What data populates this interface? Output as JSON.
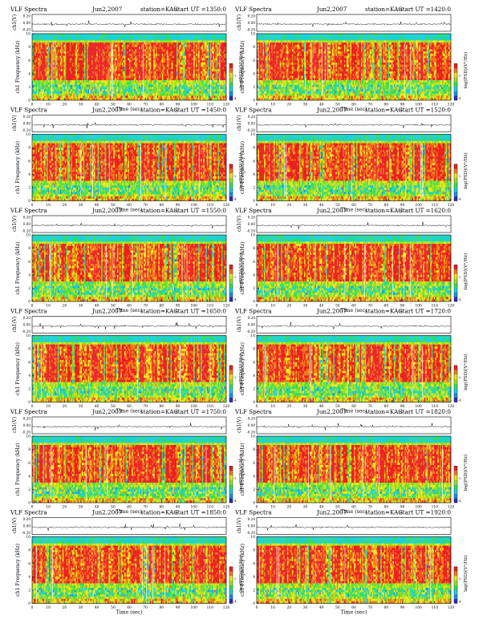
{
  "palette": [
    "#2a2fb8",
    "#1a90e8",
    "#1ad0d8",
    "#33dd55",
    "#9be01c",
    "#ece81a",
    "#f07a18",
    "#ea2020"
  ],
  "chart_data": [
    {
      "type": "heatmap",
      "title": "VLF Spectra",
      "date": "Jun2,2007",
      "station": "station=KAG",
      "start": "start  UT  =1350:0",
      "ylabel_top": "ch1(V)",
      "ylabel_spec": "ch1\nFrequency  (kHz)",
      "xlabel": "Time  (sec)",
      "colorbar_label": "log(PSD)(V²/Hz)",
      "xlim": [
        0,
        120
      ],
      "ylim": [
        0,
        10
      ],
      "top_ylim": [
        -0.2,
        0.2
      ],
      "xticks": [
        0,
        10,
        20,
        30,
        40,
        50,
        60,
        70,
        80,
        90,
        100,
        110,
        120
      ],
      "yticks": [
        0,
        2,
        4,
        6,
        8,
        10
      ],
      "top_yticks": [
        "0.20",
        "0.00",
        "-0.20"
      ],
      "cbar_ticks": [
        "-4",
        "-2"
      ],
      "grid": false
    },
    {
      "type": "heatmap",
      "title": "VLF Spectra",
      "date": "Jun2,2007",
      "station": "station=KAG",
      "start": "start  UT  =1420:0",
      "ylabel_top": "ch1(V)",
      "ylabel_spec": "ch1\nFrequency  (kHz)",
      "xlabel": "Time  (sec)",
      "colorbar_label": "log(PSD)(V²/Hz)",
      "xlim": [
        0,
        120
      ],
      "ylim": [
        0,
        10
      ],
      "top_ylim": [
        -0.2,
        0.2
      ],
      "xticks": [
        0,
        10,
        20,
        30,
        40,
        50,
        60,
        70,
        80,
        90,
        100,
        110,
        120
      ],
      "yticks": [
        0,
        2,
        4,
        6,
        8,
        10
      ],
      "top_yticks": [
        "0.20",
        "0.00",
        "-0.20"
      ],
      "cbar_ticks": [
        "-4",
        "-2"
      ],
      "grid": false
    },
    {
      "type": "heatmap",
      "title": "VLF Spectra",
      "date": "Jun2,2007",
      "station": "station=KAG",
      "start": "start  UT  =1450:0",
      "ylabel_top": "ch1(V)",
      "ylabel_spec": "ch1\nFrequency  (kHz)",
      "xlabel": "Time  (sec)",
      "colorbar_label": "log(PSD)(V²/Hz)",
      "xlim": [
        0,
        120
      ],
      "ylim": [
        0,
        10
      ],
      "top_ylim": [
        -0.2,
        0.2
      ],
      "xticks": [
        0,
        10,
        20,
        30,
        40,
        50,
        60,
        70,
        80,
        90,
        100,
        110,
        120
      ],
      "yticks": [
        0,
        2,
        4,
        6,
        8,
        10
      ],
      "top_yticks": [
        "0.20",
        "0.00",
        "-0.20"
      ],
      "cbar_ticks": [
        "-4",
        "-2"
      ],
      "grid": false
    },
    {
      "type": "heatmap",
      "title": "VLF Spectra",
      "date": "Jun2,2007",
      "station": "station=KAG",
      "start": "start  UT  =1520:0",
      "ylabel_top": "ch1(V)",
      "ylabel_spec": "ch1\nFrequency  (kHz)",
      "xlabel": "Time  (sec)",
      "colorbar_label": "log(PSD)(V²/Hz)",
      "xlim": [
        0,
        120
      ],
      "ylim": [
        0,
        10
      ],
      "top_ylim": [
        -0.2,
        0.2
      ],
      "xticks": [
        0,
        10,
        20,
        30,
        40,
        50,
        60,
        70,
        80,
        90,
        100,
        110,
        120
      ],
      "yticks": [
        0,
        2,
        4,
        6,
        8,
        10
      ],
      "top_yticks": [
        "0.20",
        "0.00",
        "-0.20"
      ],
      "cbar_ticks": [
        "-4",
        "-2"
      ],
      "grid": false
    },
    {
      "type": "heatmap",
      "title": "VLF Spectra",
      "date": "Jun2,2007",
      "station": "station=KAG",
      "start": "start  UT  =1550:0",
      "ylabel_top": "ch1(V)",
      "ylabel_spec": "ch1\nFrequency  (kHz)",
      "xlabel": "Time  (sec)",
      "colorbar_label": "log(PSD)(V²/Hz)",
      "xlim": [
        0,
        120
      ],
      "ylim": [
        0,
        10
      ],
      "top_ylim": [
        -0.2,
        0.2
      ],
      "xticks": [
        0,
        10,
        20,
        30,
        40,
        50,
        60,
        70,
        80,
        90,
        100,
        110,
        120
      ],
      "yticks": [
        0,
        2,
        4,
        6,
        8,
        10
      ],
      "top_yticks": [
        "0.20",
        "0.00",
        "-0.20"
      ],
      "cbar_ticks": [
        "-4",
        "-2"
      ],
      "grid": false
    },
    {
      "type": "heatmap",
      "title": "VLF Spectra",
      "date": "Jun2,2007",
      "station": "station=KAG",
      "start": "start  UT  =1620:0",
      "ylabel_top": "ch1(V)",
      "ylabel_spec": "ch1\nFrequency  (kHz)",
      "xlabel": "Time  (sec)",
      "colorbar_label": "log(PSD)(V²/Hz)",
      "xlim": [
        0,
        120
      ],
      "ylim": [
        0,
        10
      ],
      "top_ylim": [
        -0.2,
        0.2
      ],
      "xticks": [
        0,
        10,
        20,
        30,
        40,
        50,
        60,
        70,
        80,
        90,
        100,
        110,
        120
      ],
      "yticks": [
        0,
        2,
        4,
        6,
        8,
        10
      ],
      "top_yticks": [
        "0.20",
        "0.00",
        "-0.20"
      ],
      "cbar_ticks": [
        "-4",
        "-2"
      ],
      "grid": false
    },
    {
      "type": "heatmap",
      "title": "VLF Spectra",
      "date": "Jun2,2007",
      "station": "station=KAG",
      "start": "start  UT  =1650:0",
      "ylabel_top": "ch1(V)",
      "ylabel_spec": "ch1\nFrequency  (kHz)",
      "xlabel": "Time  (sec)",
      "colorbar_label": "log(PSD)(V²/Hz)",
      "xlim": [
        0,
        120
      ],
      "ylim": [
        0,
        10
      ],
      "top_ylim": [
        -0.2,
        0.2
      ],
      "xticks": [
        0,
        10,
        20,
        30,
        40,
        50,
        60,
        70,
        80,
        90,
        100,
        110,
        120
      ],
      "yticks": [
        0,
        2,
        4,
        6,
        8,
        10
      ],
      "top_yticks": [
        "0.20",
        "0.00",
        "-0.20"
      ],
      "cbar_ticks": [
        "-4",
        "-2"
      ],
      "grid": false
    },
    {
      "type": "heatmap",
      "title": "VLF Spectra",
      "date": "Jun2,2007",
      "station": "station=KAG",
      "start": "start  UT  =1720:0",
      "ylabel_top": "ch1(V)",
      "ylabel_spec": "ch1\nFrequency  (kHz)",
      "xlabel": "Time  (sec)",
      "colorbar_label": "log(PSD)(V²/Hz)",
      "xlim": [
        0,
        120
      ],
      "ylim": [
        0,
        10
      ],
      "top_ylim": [
        -0.2,
        0.2
      ],
      "xticks": [
        0,
        10,
        20,
        30,
        40,
        50,
        60,
        70,
        80,
        90,
        100,
        110,
        120
      ],
      "yticks": [
        0,
        2,
        4,
        6,
        8,
        10
      ],
      "top_yticks": [
        "0.20",
        "0.00",
        "-0.20"
      ],
      "cbar_ticks": [
        "-4",
        "-2"
      ],
      "grid": false
    },
    {
      "type": "heatmap",
      "title": "VLF Spectra",
      "date": "Jun2,2007",
      "station": "station=KAG",
      "start": "start  UT  =1750:0",
      "ylabel_top": "ch1(V)",
      "ylabel_spec": "ch1\nFrequency  (kHz)",
      "xlabel": "Time  (sec)",
      "colorbar_label": "log(PSD)(V²/Hz)",
      "xlim": [
        0,
        120
      ],
      "ylim": [
        0,
        10
      ],
      "top_ylim": [
        -0.2,
        0.2
      ],
      "xticks": [
        0,
        10,
        20,
        30,
        40,
        50,
        60,
        70,
        80,
        90,
        100,
        110,
        120
      ],
      "yticks": [
        0,
        2,
        4,
        6,
        8,
        10
      ],
      "top_yticks": [
        "0.20",
        "0.00",
        "-0.20"
      ],
      "cbar_ticks": [
        "-4",
        "-2"
      ],
      "grid": false
    },
    {
      "type": "heatmap",
      "title": "VLF Spectra",
      "date": "Jun2,2007",
      "station": "station=KAG",
      "start": "start  UT  =1820:0",
      "ylabel_top": "ch1(V)",
      "ylabel_spec": "ch1\nFrequency  (kHz)",
      "xlabel": "Time  (sec)",
      "colorbar_label": "log(PSD)(V²/Hz)",
      "xlim": [
        0,
        120
      ],
      "ylim": [
        0,
        10
      ],
      "top_ylim": [
        -0.2,
        0.2
      ],
      "xticks": [
        0,
        10,
        20,
        30,
        40,
        50,
        60,
        70,
        80,
        90,
        100,
        110,
        120
      ],
      "yticks": [
        0,
        2,
        4,
        6,
        8,
        10
      ],
      "top_yticks": [
        "0.20",
        "0.00",
        "-0.20"
      ],
      "cbar_ticks": [
        "-4",
        "-2"
      ],
      "grid": false
    },
    {
      "type": "heatmap",
      "title": "VLF Spectra",
      "date": "Jun2,2007",
      "station": "station=KAG",
      "start": "start  UT  =1850:0",
      "ylabel_top": "ch1(V)",
      "ylabel_spec": "ch1\nFrequency  (kHz)",
      "xlabel": "Time  (sec)",
      "colorbar_label": "log(PSD)(V²/Hz)",
      "xlim": [
        0,
        120
      ],
      "ylim": [
        0,
        10
      ],
      "top_ylim": [
        -0.2,
        0.2
      ],
      "xticks": [
        0,
        10,
        20,
        30,
        40,
        50,
        60,
        70,
        80,
        90,
        100,
        110,
        120
      ],
      "yticks": [
        0,
        2,
        4,
        6,
        8,
        10
      ],
      "top_yticks": [
        "0.20",
        "0.00",
        "-0.20"
      ],
      "cbar_ticks": [
        "-4",
        "-2"
      ],
      "grid": false
    },
    {
      "type": "heatmap",
      "title": "VLF Spectra",
      "date": "Jun2,2007",
      "station": "station=KAG",
      "start": "start  UT  =1920:0",
      "ylabel_top": "ch1(V)",
      "ylabel_spec": "ch1\nFrequency  (kHz)",
      "xlabel": "Time  (sec)",
      "colorbar_label": "log(PSD)(V²/Hz)",
      "xlim": [
        0,
        120
      ],
      "ylim": [
        0,
        10
      ],
      "top_ylim": [
        -0.2,
        0.2
      ],
      "xticks": [
        0,
        10,
        20,
        30,
        40,
        50,
        60,
        70,
        80,
        90,
        100,
        110,
        120
      ],
      "yticks": [
        0,
        2,
        4,
        6,
        8,
        10
      ],
      "top_yticks": [
        "0.20",
        "0.00",
        "-0.20"
      ],
      "cbar_ticks": [
        "-4",
        "-2"
      ],
      "grid": false
    }
  ]
}
